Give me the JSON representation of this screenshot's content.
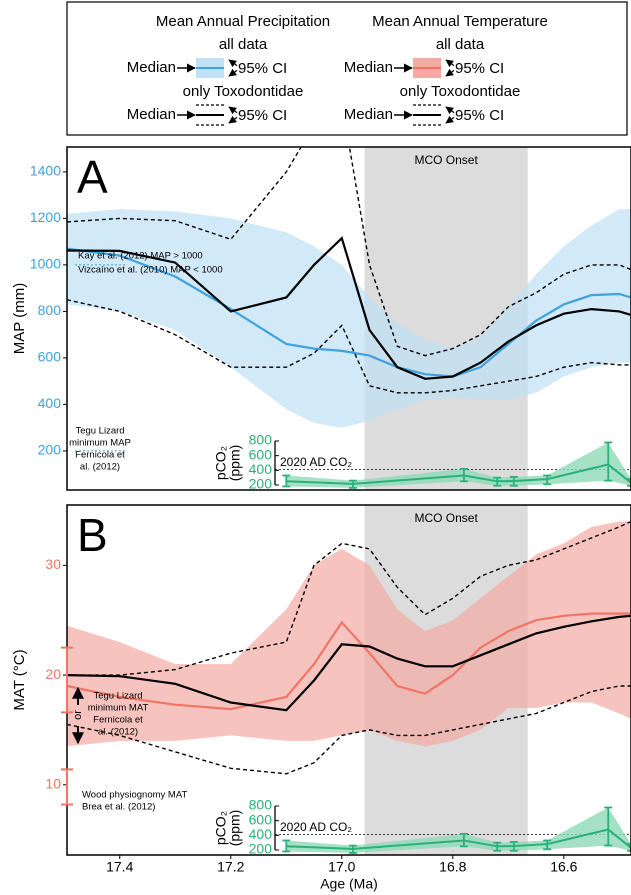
{
  "legend": {
    "columns": [
      {
        "title": "Mean Annual Precipitation",
        "color": "#3ea2dc",
        "fill": "#bfe0f5",
        "groups": [
          {
            "label": "all data",
            "median": "Median",
            "ci": "95% CI"
          },
          {
            "label": "only Toxodontidae",
            "median": "Median",
            "ci": "95% CI"
          }
        ]
      },
      {
        "title": "Mean Annual Temperature",
        "color": "#f07565",
        "fill": "#f4aaa3",
        "groups": [
          {
            "label": "all data",
            "median": "Median",
            "ci": "95% CI"
          },
          {
            "label": "only Toxodontidae",
            "median": "Median",
            "ci": "95% CI"
          }
        ]
      }
    ]
  },
  "chart_data": [
    {
      "type": "line",
      "label": "A",
      "ylabel": "MAP (mm)",
      "tick_color": "#3ea2dc",
      "xlim": [
        17.495,
        16.479
      ],
      "ylim": [
        32,
        1507
      ],
      "yticks": [
        200,
        400,
        600,
        800,
        1000,
        1200,
        1400
      ],
      "shaded_region": {
        "label": "MCO Onset",
        "x": [
          16.959,
          16.665
        ],
        "color": "#dcdcdc"
      },
      "x": [
        17.495,
        17.4,
        17.3,
        17.2,
        17.1,
        17.05,
        17.0,
        16.95,
        16.9,
        16.85,
        16.8,
        16.75,
        16.7,
        16.65,
        16.6,
        16.55,
        16.5,
        16.479
      ],
      "bands": [
        {
          "color": "#bfe0f5",
          "upper": [
            1220,
            1240,
            1230,
            1200,
            1140,
            1080,
            1000,
            860,
            750,
            680,
            640,
            690,
            820,
            960,
            1080,
            1170,
            1240,
            1240
          ],
          "lower": [
            830,
            800,
            720,
            560,
            380,
            320,
            300,
            330,
            380,
            420,
            430,
            420,
            420,
            450,
            520,
            560,
            580,
            580
          ]
        }
      ],
      "series": [
        {
          "color": "#3ea2dc",
          "dashed": false,
          "values": [
            1070,
            1040,
            950,
            810,
            660,
            640,
            630,
            610,
            560,
            530,
            520,
            560,
            660,
            760,
            830,
            870,
            875,
            860
          ]
        },
        {
          "color": "#000000",
          "dashed": false,
          "values": [
            1062,
            1060,
            1010,
            800,
            860,
            1000,
            1115,
            720,
            560,
            510,
            520,
            580,
            670,
            740,
            790,
            810,
            800,
            785
          ]
        },
        {
          "color": "#000000",
          "dashed": true,
          "values": [
            1185,
            1200,
            1190,
            1110,
            1400,
            1600,
            1700,
            1000,
            650,
            610,
            640,
            700,
            820,
            880,
            960,
            1000,
            1000,
            980
          ]
        },
        {
          "color": "#000000",
          "dashed": true,
          "values": [
            850,
            800,
            700,
            560,
            560,
            620,
            740,
            480,
            450,
            450,
            460,
            480,
            500,
            520,
            560,
            580,
            570,
            570
          ]
        }
      ],
      "annotations": [
        {
          "lines": [
            "Kay et al. (2012) MAP > 1000",
            "Vizcaíno  et al. (2010) MAP < 1000"
          ],
          "value": 1000
        },
        {
          "lines": [
            "Tegu Lizard",
            "minimum MAP",
            "Fernicola et",
            "al. (2012)"
          ],
          "value": 200
        }
      ],
      "inset": {
        "ylabel_lines": [
          "pCO₂",
          "(ppm)"
        ],
        "color": "#2ab07a",
        "fill": "#8fd9b6",
        "ylim": [
          200,
          800
        ],
        "yticks": [
          200,
          400,
          600,
          800
        ],
        "reference": {
          "label": "2020 AD CO₂",
          "value": 410
        },
        "x": [
          17.1,
          16.98,
          16.78,
          16.72,
          16.69,
          16.63,
          16.52,
          16.479
        ],
        "values": [
          250,
          215,
          330,
          250,
          255,
          280,
          480,
          230
        ],
        "lower": [
          180,
          160,
          250,
          190,
          190,
          210,
          260,
          190
        ],
        "upper": [
          330,
          260,
          420,
          300,
          310,
          330,
          780,
          280
        ]
      }
    },
    {
      "type": "line",
      "label": "B",
      "ylabel": "MAT (°C)",
      "xlabel": "Age (Ma)",
      "tick_color": "#f07565",
      "xlim": [
        17.495,
        16.479
      ],
      "ylim": [
        3.6,
        35.5
      ],
      "yticks": [
        10,
        20,
        30
      ],
      "xticks": [
        17.4,
        17.2,
        {
          "value": 17,
          "label": "17.0"
        },
        16.8,
        16.6
      ],
      "shaded_region": {
        "label": "MCO Onset",
        "x": [
          16.959,
          16.665
        ],
        "color": "#dcdcdc"
      },
      "x": [
        17.495,
        17.4,
        17.3,
        17.2,
        17.1,
        17.05,
        17.0,
        16.95,
        16.9,
        16.85,
        16.8,
        16.75,
        16.7,
        16.65,
        16.6,
        16.55,
        16.5,
        16.479
      ],
      "bands": [
        {
          "color": "#f4aaa3",
          "upper": [
            24.5,
            23,
            21,
            21,
            26,
            30,
            31.5,
            30,
            26,
            24,
            25,
            27,
            29,
            31,
            32,
            33.5,
            34,
            34
          ],
          "lower": [
            13.5,
            14,
            14,
            14.5,
            14,
            14,
            14.5,
            15,
            14,
            13.5,
            14,
            15,
            17,
            17,
            17.5,
            17.5,
            16.5,
            16
          ]
        }
      ],
      "series": [
        {
          "color": "#f07565",
          "dashed": false,
          "values": [
            19,
            18,
            17.3,
            16.9,
            18,
            21,
            24.8,
            22,
            19,
            18.3,
            20,
            22.5,
            24,
            25,
            25.4,
            25.6,
            25.6,
            25.6
          ]
        },
        {
          "color": "#000000",
          "dashed": false,
          "values": [
            20,
            19.9,
            19.2,
            17.5,
            16.8,
            19.5,
            22.8,
            22.6,
            21.5,
            20.8,
            20.8,
            21.8,
            22.8,
            23.8,
            24.4,
            24.9,
            25.3,
            25.4
          ]
        },
        {
          "color": "#000000",
          "dashed": true,
          "values": [
            20,
            20,
            20.5,
            22,
            23,
            30,
            32,
            31.5,
            28,
            25.5,
            27,
            29,
            30,
            30.5,
            31.5,
            32.5,
            33.5,
            34
          ]
        },
        {
          "color": "#000000",
          "dashed": true,
          "values": [
            15.5,
            14.5,
            13,
            11.5,
            11,
            12,
            14.5,
            15,
            14.5,
            14.5,
            15,
            15.5,
            16,
            16.5,
            17.5,
            18.5,
            19,
            19
          ]
        }
      ],
      "annotations": [
        {
          "lines": [
            "Tegu Lizard",
            "minimum MAT",
            "Fernicola et",
            "al. (2012)"
          ],
          "low": 16.6,
          "high": 22.5
        },
        {
          "lines": [
            "Wood physiognomy MAT",
            "Brea et al. (2012)"
          ],
          "low": 8.2,
          "high": 11.4
        },
        {
          "lines": [
            "or"
          ]
        }
      ],
      "inset": {
        "ylabel_lines": [
          "pCO₂",
          "(ppm)"
        ],
        "color": "#2ab07a",
        "fill": "#8fd9b6",
        "ylim": [
          200,
          800
        ],
        "yticks": [
          200,
          400,
          600,
          800
        ],
        "reference": {
          "label": "2020 AD CO₂",
          "value": 410
        },
        "x": [
          17.1,
          16.98,
          16.78,
          16.72,
          16.69,
          16.63,
          16.52,
          16.479
        ],
        "values": [
          250,
          215,
          330,
          250,
          255,
          280,
          480,
          230
        ],
        "lower": [
          180,
          160,
          250,
          190,
          190,
          210,
          260,
          190
        ],
        "upper": [
          330,
          260,
          420,
          300,
          310,
          330,
          780,
          280
        ]
      }
    }
  ]
}
